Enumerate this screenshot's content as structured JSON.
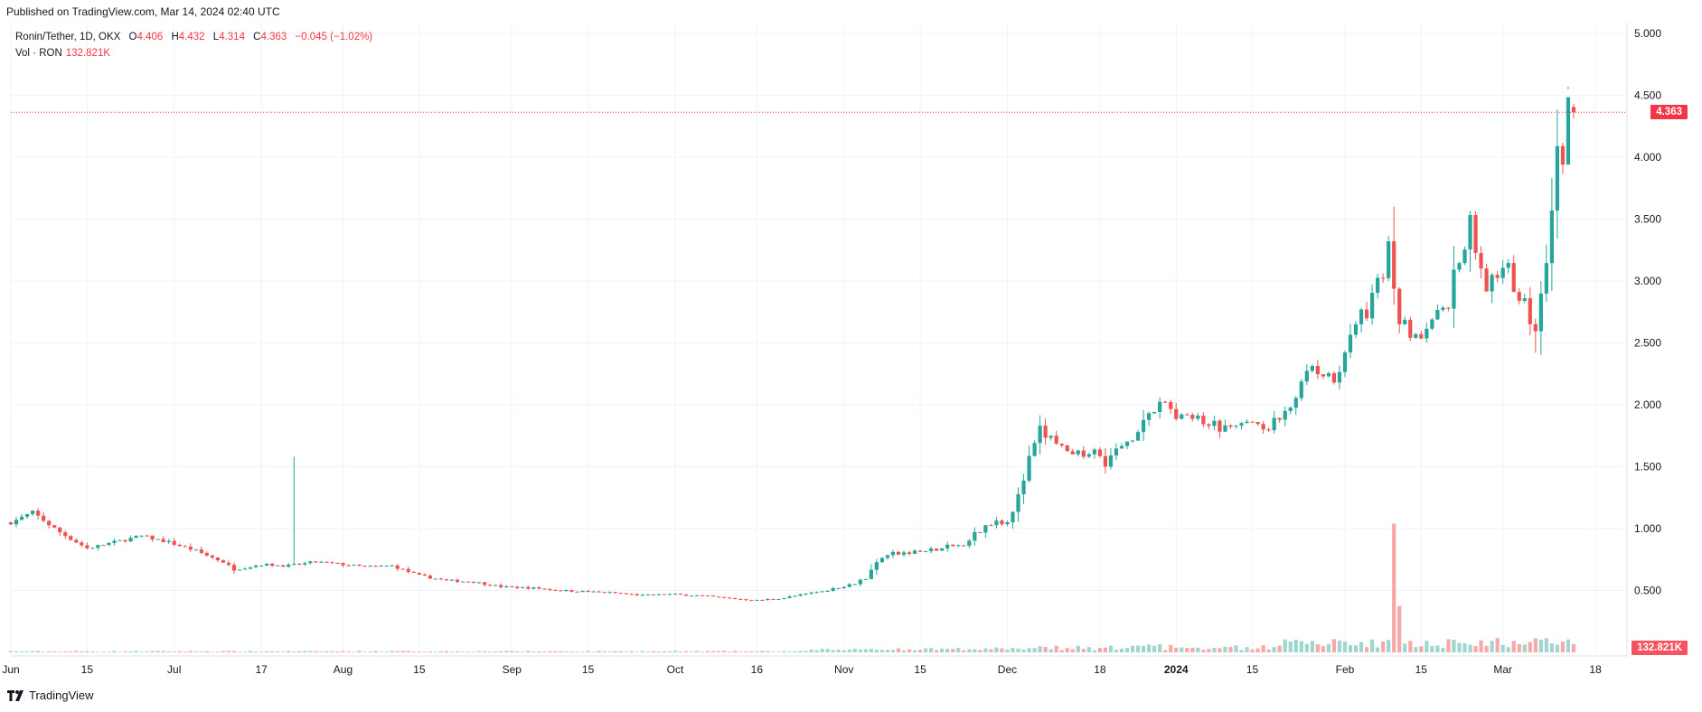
{
  "published": "Published on TradingView.com, Mar 14, 2024 02:40 UTC",
  "legend": {
    "symbol": "Ronin/Tether, 1D, OKX",
    "o_label": "O",
    "o": "4.406",
    "h_label": "H",
    "h": "4.432",
    "l_label": "L",
    "l": "4.314",
    "c_label": "C",
    "c": "4.363",
    "change": "−0.045 (−1.02%)",
    "vol_label": "Vol · RON",
    "vol_value": "132.821K"
  },
  "badges": {
    "last_price": "4.363",
    "last_volume": "132.821K"
  },
  "footer": {
    "brand": "TradingView"
  },
  "colors": {
    "up": "#26a69a",
    "down": "#ef5350",
    "up_vol": "#9fd6d0",
    "down_vol": "#f7a9a7",
    "grid": "#f0f3fa",
    "last_line": "#f23645"
  },
  "chart_data": {
    "type": "candlestick",
    "interval": "1D",
    "y_axis_labels": [
      "5.000",
      "4.500",
      "4.000",
      "3.500",
      "3.000",
      "2.500",
      "2.000",
      "1.500",
      "1.000",
      "0.500"
    ],
    "ylim": [
      0,
      5.0
    ],
    "x_ticks": [
      "Jun",
      "15",
      "Jul",
      "17",
      "Aug",
      "15",
      "Sep",
      "15",
      "Oct",
      "16",
      "Nov",
      "15",
      "Dec",
      "18",
      "2024",
      "15",
      "Feb",
      "15",
      "Mar",
      "18"
    ],
    "x_tick_bold": [
      "2024"
    ],
    "last_price": 4.363,
    "ohlc_anchors": [
      [
        "Jun 1",
        1.05
      ],
      [
        "Jun 5",
        1.13
      ],
      [
        "Jun 10",
        0.97
      ],
      [
        "Jun 15",
        0.84
      ],
      [
        "Jun 20",
        0.89
      ],
      [
        "Jun 25",
        0.94
      ],
      [
        "Jun 30",
        0.89
      ],
      [
        "Jul 5",
        0.82
      ],
      [
        "Jul 10",
        0.73
      ],
      [
        "Jul 12",
        0.67
      ],
      [
        "Jul 17",
        0.71
      ],
      [
        "Jul 22",
        0.7
      ],
      [
        "Jul 27",
        0.73
      ],
      [
        "Aug 1",
        0.71
      ],
      [
        "Aug 5",
        0.69
      ],
      [
        "Aug 10",
        0.7
      ],
      [
        "Aug 15",
        0.62
      ],
      [
        "Aug 20",
        0.58
      ],
      [
        "Aug 25",
        0.57
      ],
      [
        "Aug 30",
        0.53
      ],
      [
        "Sep 5",
        0.52
      ],
      [
        "Sep 10",
        0.5
      ],
      [
        "Sep 15",
        0.49
      ],
      [
        "Sep 20",
        0.48
      ],
      [
        "Sep 25",
        0.46
      ],
      [
        "Sep 30",
        0.47
      ],
      [
        "Oct 5",
        0.46
      ],
      [
        "Oct 10",
        0.44
      ],
      [
        "Oct 16",
        0.42
      ],
      [
        "Oct 21",
        0.44
      ],
      [
        "Oct 26",
        0.48
      ],
      [
        "Oct 31",
        0.52
      ],
      [
        "Nov 5",
        0.6
      ],
      [
        "Nov 8",
        0.78
      ],
      [
        "Nov 12",
        0.8
      ],
      [
        "Nov 17",
        0.82
      ],
      [
        "Nov 22",
        0.86
      ],
      [
        "Nov 25",
        0.95
      ],
      [
        "Nov 28",
        1.06
      ],
      [
        "Dec 1",
        1.07
      ],
      [
        "Dec 3",
        1.25
      ],
      [
        "Dec 5",
        1.55
      ],
      [
        "Dec 7",
        1.78
      ],
      [
        "Dec 10",
        1.7
      ],
      [
        "Dec 13",
        1.55
      ],
      [
        "Dec 16",
        1.65
      ],
      [
        "Dec 19",
        1.55
      ],
      [
        "Dec 23",
        1.7
      ],
      [
        "Dec 27",
        1.93
      ],
      [
        "Dec 30",
        2.0
      ],
      [
        "Jan 2",
        1.9
      ],
      [
        "Jan 6",
        1.85
      ],
      [
        "Jan 10",
        1.8
      ],
      [
        "Jan 15",
        1.85
      ],
      [
        "Jan 18",
        1.8
      ],
      [
        "Jan 22",
        1.95
      ],
      [
        "Jan 26",
        2.3
      ],
      [
        "Jan 30",
        2.25
      ],
      [
        "Feb 3",
        2.6
      ],
      [
        "Feb 7",
        2.95
      ],
      [
        "Feb 9",
        3.3
      ],
      [
        "Feb 11",
        2.7
      ],
      [
        "Feb 14",
        2.55
      ],
      [
        "Feb 17",
        2.75
      ],
      [
        "Feb 20",
        2.85
      ],
      [
        "Feb 24",
        3.45
      ],
      [
        "Feb 27",
        3.0
      ],
      [
        "Mar 2",
        3.05
      ],
      [
        "Mar 5",
        2.8
      ],
      [
        "Mar 7",
        2.65
      ],
      [
        "Mar 9",
        3.2
      ],
      [
        "Mar 11",
        4.0
      ],
      [
        "Mar 12",
        3.9
      ],
      [
        "Mar 13",
        4.4
      ],
      [
        "Mar 14",
        4.363
      ]
    ],
    "wick_spikes": [
      [
        "Jul 23",
        1.58
      ],
      [
        "Feb 10",
        3.6
      ],
      [
        "Mar 13",
        4.55
      ],
      [
        "Mar 7",
        2.42
      ]
    ],
    "volume_spike": [
      "Feb 10",
      1.25
    ]
  }
}
